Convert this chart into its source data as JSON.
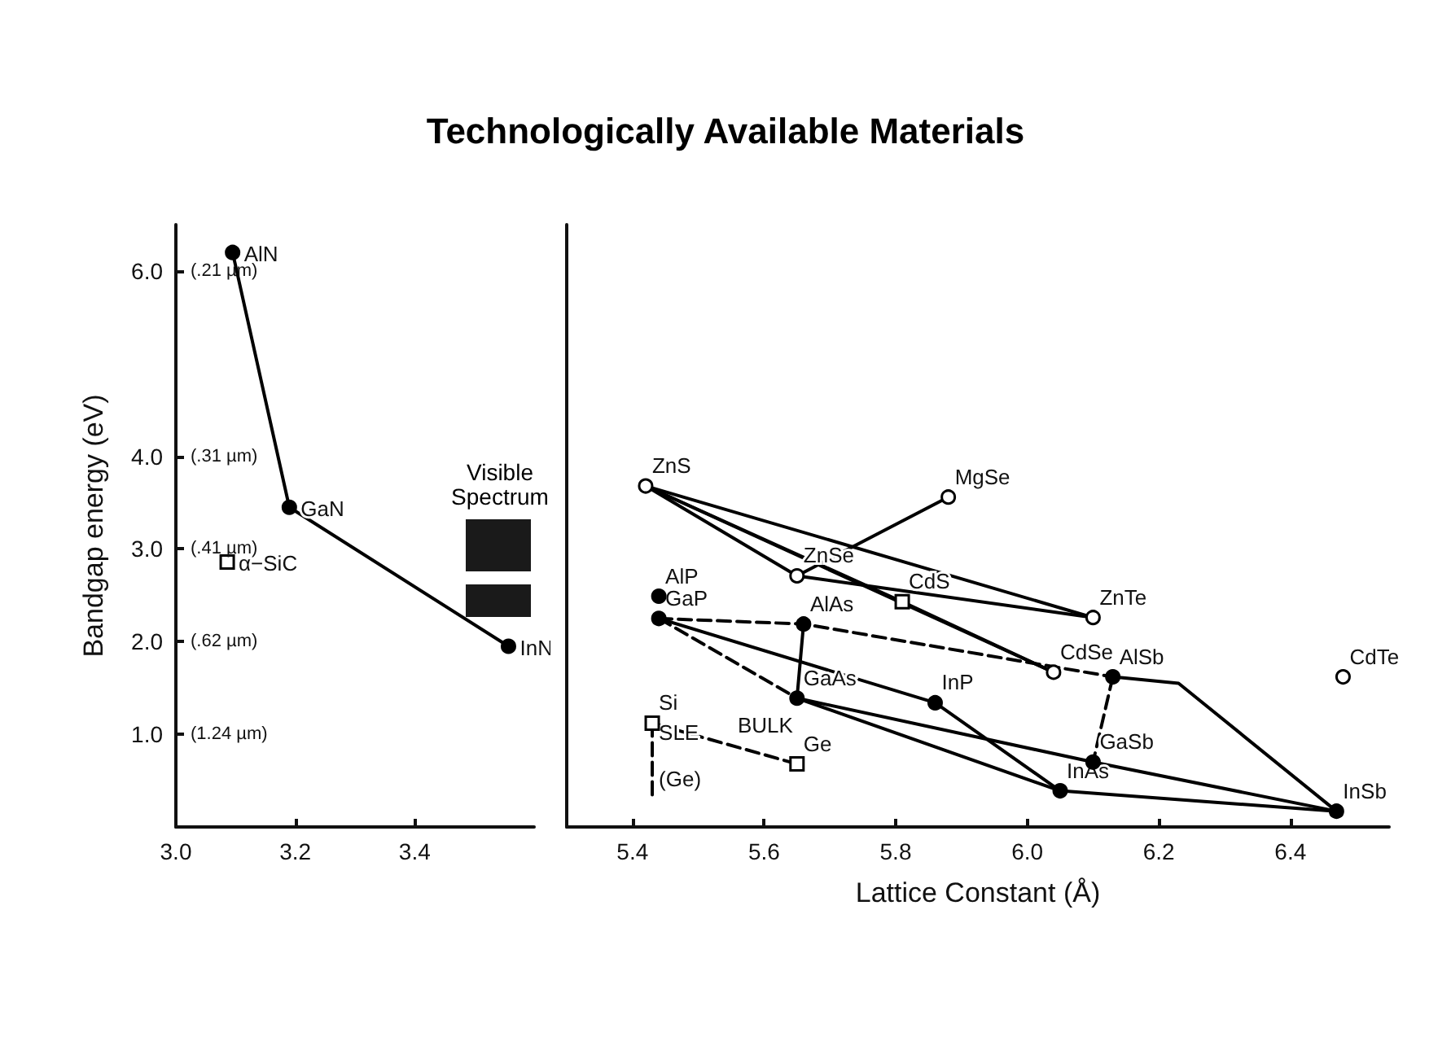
{
  "chart_data": [
    {
      "type": "scatter",
      "title": "Technologically Available Materials",
      "ylabel": "Bandgap energy (eV)",
      "xlim": [
        3.0,
        3.6
      ],
      "xticks": [
        {
          "value": 3,
          "label": "3.0"
        },
        3.2,
        3.4
      ],
      "ylim": [
        0,
        6.5
      ],
      "yticks": [
        {
          "value": 1,
          "label": "1.0"
        },
        {
          "value": 2,
          "label": "2.0"
        },
        {
          "value": 3,
          "label": "3.0"
        },
        {
          "value": 4,
          "label": "4.0"
        },
        {
          "value": 6,
          "label": "6.0"
        }
      ],
      "series": [
        {
          "type": "line",
          "x": [
            3.095,
            3.19,
            3.557
          ],
          "values": [
            6.2,
            3.45,
            1.95
          ],
          "color": "#000000",
          "line_style": "solid",
          "marker": "circle"
        },
        {
          "x": [
            3.086
          ],
          "values": [
            2.86
          ],
          "color": "#ffffff",
          "marker": "square"
        }
      ],
      "annotations": [
        "(1.24 µm)",
        "(.62 µm)",
        "(.41 µm)",
        "(.31 µm)",
        "(.21 µm)",
        "Visible Spectrum",
        {
          "text": "AlN",
          "x": 3.095,
          "y": 6.2
        },
        {
          "text": "GaN",
          "x": 3.19,
          "y": 3.45
        },
        {
          "text": "InN",
          "x": 3.557,
          "y": 1.95
        },
        {
          "text": "α−SiC",
          "x": 3.086,
          "y": 2.86
        }
      ]
    },
    {
      "type": "scatter",
      "xlabel": "Lattice Constant (Å)",
      "xlim": [
        5.3,
        6.55
      ],
      "xticks": [
        5.4,
        5.6,
        5.8,
        {
          "value": 6,
          "label": "6.0"
        },
        6.2,
        6.4
      ],
      "ylim": [
        0,
        6.5
      ],
      "tick_labels": "x",
      "series": [
        {
          "type": "line",
          "x": [
            5.42,
            5.65,
            6.1
          ],
          "values": [
            3.68,
            2.71,
            2.26
          ],
          "color": "#000000",
          "line_style": "solid",
          "marker": "none"
        },
        {
          "type": "line",
          "x": [
            5.42,
            5.81,
            6.04
          ],
          "values": [
            3.68,
            2.43,
            1.67
          ],
          "color": "#000000",
          "line_style": "solid",
          "marker": "none"
        },
        {
          "type": "line",
          "x": [
            5.42,
            6.1
          ],
          "values": [
            3.68,
            2.26
          ],
          "color": "#000000",
          "line_style": "solid",
          "marker": "none"
        },
        {
          "type": "line",
          "x": [
            5.42,
            6.04
          ],
          "values": [
            3.68,
            1.67
          ],
          "color": "#000000",
          "line_style": "solid",
          "marker": "none"
        },
        {
          "type": "line",
          "x": [
            5.65,
            5.88
          ],
          "values": [
            2.71,
            3.56
          ],
          "color": "#000000",
          "line_style": "solid",
          "marker": "none"
        },
        {
          "type": "line",
          "x": [
            5.44,
            5.65
          ],
          "values": [
            2.25,
            1.39
          ],
          "color": "#000000",
          "line_style": "dashed",
          "marker": "none"
        },
        {
          "type": "line",
          "x": [
            5.44,
            5.66,
            6.13
          ],
          "values": [
            2.25,
            2.19,
            1.62
          ],
          "color": "#000000",
          "line_style": "dashed",
          "marker": "none"
        },
        {
          "type": "line",
          "x": [
            6.13,
            6.1
          ],
          "values": [
            1.62,
            0.7
          ],
          "color": "#000000",
          "line_style": "dashed",
          "marker": "none"
        },
        {
          "type": "line",
          "x": [
            5.66,
            5.65
          ],
          "values": [
            2.19,
            1.39
          ],
          "color": "#000000",
          "line_style": "solid",
          "marker": "none"
        },
        {
          "type": "line",
          "x": [
            5.44,
            5.86,
            6.05
          ],
          "values": [
            2.25,
            1.34,
            0.39
          ],
          "color": "#000000",
          "line_style": "solid",
          "marker": "none"
        },
        {
          "type": "line",
          "x": [
            5.65,
            6.05,
            6.47
          ],
          "values": [
            1.39,
            0.39,
            0.17
          ],
          "color": "#000000",
          "line_style": "solid",
          "marker": "none"
        },
        {
          "type": "line",
          "x": [
            5.65,
            6.1,
            6.47
          ],
          "values": [
            1.39,
            0.7,
            0.17
          ],
          "color": "#000000",
          "line_style": "solid",
          "marker": "none"
        },
        {
          "type": "line",
          "x": [
            6.13,
            6.23,
            6.47
          ],
          "values": [
            1.62,
            1.55,
            0.17
          ],
          "color": "#000000",
          "line_style": "solid",
          "marker": "none"
        },
        {
          "type": "line",
          "x": [
            5.43,
            5.65
          ],
          "values": [
            1.12,
            0.68
          ],
          "color": "#000000",
          "line_style": "dashed",
          "marker": "none"
        },
        {
          "type": "line",
          "x": [
            5.43,
            5.43
          ],
          "values": [
            1.12,
            0.3
          ],
          "color": "#000000",
          "line_style": "dashed",
          "marker": "none"
        },
        {
          "x": [
            5.44,
            5.44,
            5.66,
            5.65,
            5.86,
            6.05,
            6.13,
            6.1,
            6.47
          ],
          "values": [
            2.49,
            2.25,
            2.19,
            1.39,
            1.34,
            0.39,
            1.62,
            0.7,
            0.17
          ],
          "color": "#000000",
          "marker": "circle"
        },
        {
          "x": [
            5.42,
            5.88,
            5.65,
            6.1,
            6.04,
            6.48
          ],
          "values": [
            3.68,
            3.56,
            2.71,
            2.26,
            1.67,
            1.62
          ],
          "color": "#ffffff",
          "marker": "circle"
        },
        {
          "x": [
            5.81,
            5.43,
            5.65
          ],
          "values": [
            2.43,
            1.12,
            0.68
          ],
          "color": "#ffffff",
          "marker": "square"
        }
      ],
      "annotations": [
        {
          "text": "ZnS",
          "x": 5.42,
          "y": 3.68
        },
        {
          "text": "MgSe",
          "x": 5.88,
          "y": 3.56
        },
        {
          "text": "ZnSe",
          "x": 5.65,
          "y": 2.71
        },
        {
          "text": "CdS",
          "x": 5.81,
          "y": 2.43
        },
        {
          "text": "ZnTe",
          "x": 6.1,
          "y": 2.26
        },
        {
          "text": "AlP",
          "x": 5.44,
          "y": 2.49
        },
        {
          "text": "GaP",
          "x": 5.44,
          "y": 2.25
        },
        {
          "text": "AlAs",
          "x": 5.66,
          "y": 2.19
        },
        {
          "text": "CdSe",
          "x": 6.04,
          "y": 1.67
        },
        {
          "text": "AlSb",
          "x": 6.13,
          "y": 1.62
        },
        {
          "text": "CdTe",
          "x": 6.48,
          "y": 1.62
        },
        {
          "text": "GaAs",
          "x": 5.65,
          "y": 1.39
        },
        {
          "text": "InP",
          "x": 5.86,
          "y": 1.34
        },
        {
          "text": "Si",
          "x": 5.43,
          "y": 1.12
        },
        {
          "text": "Ge",
          "x": 5.65,
          "y": 0.68
        },
        {
          "text": "GaSb",
          "x": 6.1,
          "y": 0.7
        },
        {
          "text": "InAs",
          "x": 6.05,
          "y": 0.39
        },
        {
          "text": "InSb",
          "x": 6.47,
          "y": 0.17
        },
        {
          "text": "SLE",
          "x": 5.43,
          "y": 0.8
        },
        {
          "text": "BULK",
          "x": 5.55,
          "y": 0.88
        },
        {
          "text": "(Ge)",
          "x": 5.43,
          "y": 0.3
        }
      ]
    }
  ]
}
